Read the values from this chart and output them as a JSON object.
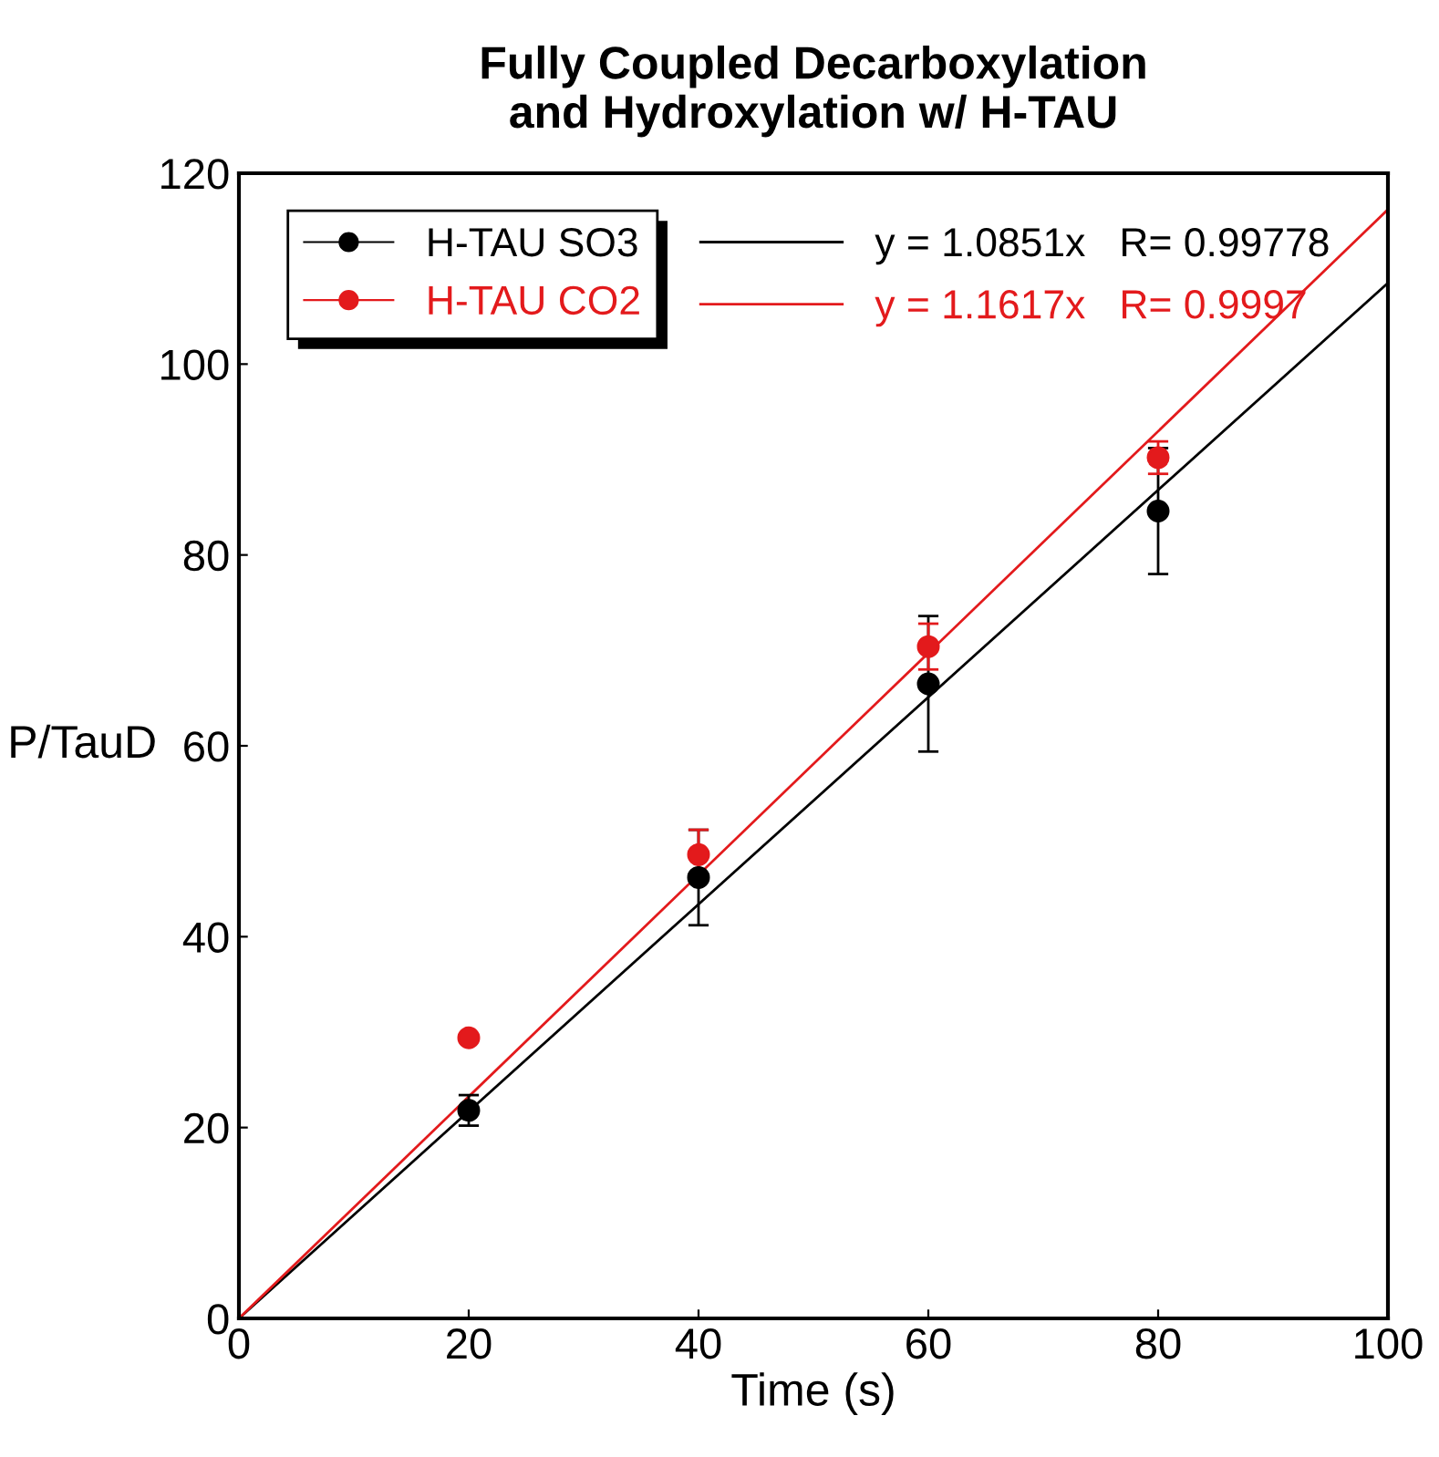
{
  "chart_data": {
    "type": "scatter",
    "title": "Fully Coupled Decarboxylation\nand Hydroxylation w/ H-TAU",
    "xlabel": "Time (s)",
    "ylabel": "P/TauD",
    "xlim": [
      0,
      100
    ],
    "ylim": [
      0,
      120
    ],
    "xticks": [
      0,
      20,
      40,
      60,
      80,
      100
    ],
    "yticks": [
      0,
      20,
      40,
      60,
      80,
      100,
      120
    ],
    "grid": false,
    "legend": "top left",
    "marker": "circle",
    "series": [
      {
        "name": "H-TAU SO3",
        "color": "#000000",
        "x": [
          20,
          40,
          60,
          80
        ],
        "values": [
          21.8,
          46.2,
          66.5,
          84.6
        ],
        "errors": [
          1.6,
          5,
          7.1,
          6.6
        ]
      },
      {
        "name": "H-TAU CO2",
        "color": "#e31a1c",
        "x": [
          20,
          40,
          60,
          80
        ],
        "values": [
          29.4,
          48.6,
          70.4,
          90.2
        ],
        "errors": [
          null,
          2.6,
          2.4,
          1.7
        ]
      },
      {
        "name": "y = 1.0851x   R= 0.99778",
        "type": "line",
        "marker": "none",
        "color": "#000000",
        "x": [
          0,
          100
        ],
        "values": [
          0,
          108.5
        ]
      },
      {
        "name": "y = 1.1617x   R= 0.9997",
        "type": "line",
        "marker": "none",
        "color": "#e31a1c",
        "x": [
          0,
          100
        ],
        "values": [
          0,
          116.2
        ]
      }
    ]
  }
}
